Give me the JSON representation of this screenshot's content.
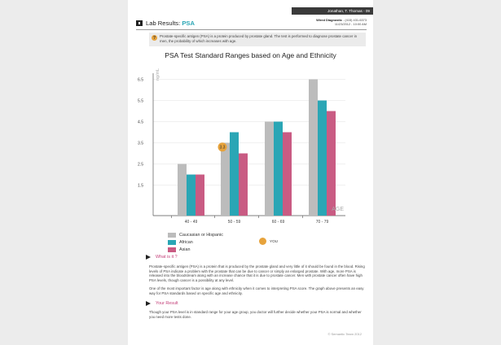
{
  "patient": {
    "name_bar": "Jonathan, T. Thomas - 09"
  },
  "header": {
    "title_prefix": "Lab Results: ",
    "title_accent": "PSA",
    "clinic_name": "Wired Diagnostic",
    "clinic_phone": " - (415) 431-6373",
    "datetime": "11/23/2012 - 10:00 AM"
  },
  "info": {
    "icon": "question-icon",
    "text": "Prostate-specific antigen (PSA) is a protein produced by prostate gland. The test is performed to diagnose prostate cancer in men, the probability of which increases with age."
  },
  "chart_data": {
    "type": "bar",
    "title": "PSA Test Standard Ranges based on Age and Ethnicity",
    "ylabel": "ng/mL",
    "xlabel": "AGE",
    "ylim": [
      0,
      7
    ],
    "yticks": [
      1.5,
      2.5,
      3.5,
      4.5,
      5.5,
      6.5
    ],
    "ytick_labels": [
      "1.5",
      "2.5",
      "3.5",
      "4.5",
      "5.5",
      "6.5"
    ],
    "categories": [
      "40 - 49",
      "50 - 59",
      "60 - 69",
      "70 - 79"
    ],
    "series": [
      {
        "name": "Caucasian or Hispanic",
        "color": "#bcbcbc",
        "values": [
          2.5,
          3.5,
          4.5,
          6.5
        ]
      },
      {
        "name": "African",
        "color": "#2aa6b5",
        "values": [
          2.0,
          4.0,
          4.5,
          5.5
        ]
      },
      {
        "name": "Asian",
        "color": "#c95b83",
        "values": [
          2.0,
          3.0,
          4.0,
          5.0
        ]
      }
    ],
    "marker": {
      "label": "YOU",
      "value_label": "3.3",
      "value": 3.3,
      "category": "50 - 59",
      "color": "#e7a33c"
    }
  },
  "sections": {
    "what_title": "What is it ?",
    "what_p1": "Prostate-specific antigen (PSA) is a protein that is produced by the prostate gland and very little of it should be found in the blood. Rising levels of PSA indicate a problem with the prostate that can be due to cancer or simply an enlarged prostate. With age, more PSA is released into the bloodstream along with an increase chance that it is due to prostate cancer. Men with prostate cancer often have high PSA levels, though cancer is a possibility at any level.",
    "what_p2": "One of the most important factor is age along with ethnicity when it comes to interpreting PSA score. The graph above presents an easy way for PSA standards based on specific age and ethnicity.",
    "result_title": "Your Result",
    "result_p": "Though your PSA level is in standard range for your age group, you doctor will further decide whether your PSA is normal and whether you need more tests done."
  },
  "footer": {
    "text": "© Semantic Team 2012"
  }
}
